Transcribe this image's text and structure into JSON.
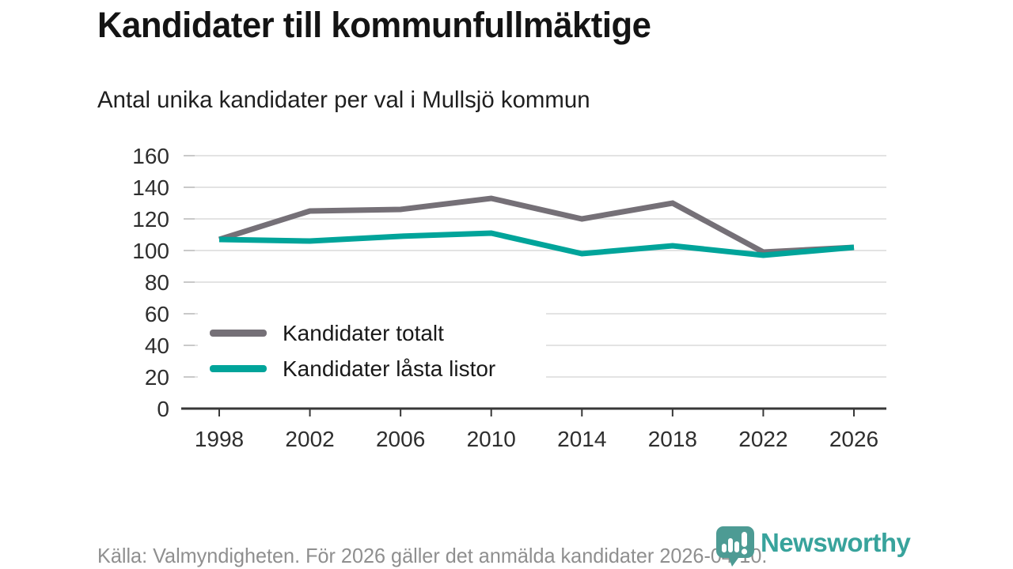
{
  "header": {
    "title": "Kandidater till kommunfullmäktige",
    "subtitle": "Antal unika kandidater per val i Mullsjö kommun"
  },
  "chart_data": {
    "type": "line",
    "title": "Kandidater till kommunfullmäktige",
    "subtitle": "Antal unika kandidater per val i Mullsjö kommun",
    "categories": [
      "1998",
      "2002",
      "2006",
      "2010",
      "2014",
      "2018",
      "2022",
      "2026"
    ],
    "series": [
      {
        "name": "Kandidater totalt",
        "color": "#757077",
        "values": [
          107,
          125,
          126,
          133,
          120,
          130,
          99,
          102
        ]
      },
      {
        "name": "Kandidater låsta listor",
        "color": "#00a49a",
        "values": [
          107,
          106,
          109,
          111,
          98,
          103,
          97,
          102
        ]
      }
    ],
    "xlabel": "",
    "ylabel": "",
    "ylim": [
      0,
      160
    ],
    "ytick_step": 20,
    "grid": "horizontal",
    "legend_position": "inside-left"
  },
  "legend": {
    "items": [
      {
        "label": "Kandidater totalt"
      },
      {
        "label": "Kandidater låsta listor"
      }
    ]
  },
  "footer": {
    "source": "Källa: Valmyndigheten. För 2026 gäller det anmälda kandidater 2026-04-10.",
    "brand": "Newsworthy"
  },
  "colors": {
    "series_total": "#757077",
    "series_locked": "#00a49a",
    "gridline": "#e3e3e3",
    "axis": "#383838",
    "brand_teal": "#38a39c",
    "logo_pin": "#4d9b94",
    "footer_text": "#8f8f8f"
  },
  "icons": {
    "logo": "newsworthy-pin-icon"
  }
}
